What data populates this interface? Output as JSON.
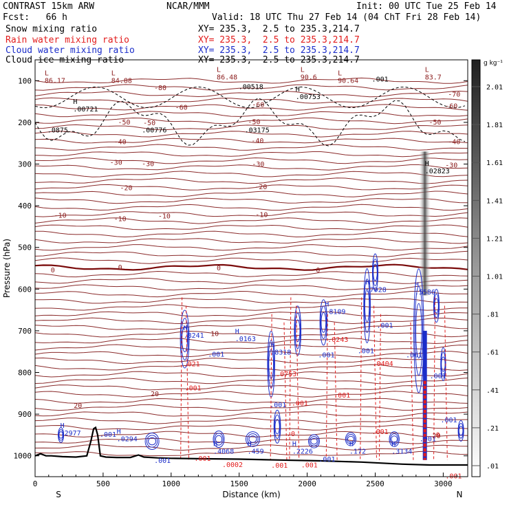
{
  "header": {
    "left_line1": "CONTRAST 15km ARW",
    "left_line2": "Fcst:   66 h",
    "center_top": "NCAR/MMM",
    "init": "Init: 00 UTC Tue 25 Feb 14",
    "valid": "Valid: 18 UTC Thu 27 Feb 14 (04 ChT Fri 28 Feb 14)",
    "fields": [
      {
        "label": "Snow mixing ratio",
        "xy": "XY= 235.3,  2.5 to 235.3,214.7",
        "color": "#000000"
      },
      {
        "label": "Rain water mixing ratio",
        "xy": "XY= 235.3,  2.5 to 235.3,214.7",
        "color": "#e21c1c"
      },
      {
        "label": "Cloud water mixing ratio",
        "xy": "XY= 235.3,  2.5 to 235.3,214.7",
        "color": "#1b2dc9"
      },
      {
        "label": "Cloud ice mixing ratio",
        "xy": "XY= 235.3,  2.5 to 235.3,214.7",
        "color": "#000000"
      }
    ]
  },
  "chart_data": {
    "type": "contour cross-section",
    "xlabel": "Distance (km)",
    "ylabel": "Pressure (hPa)",
    "x_ticks": [
      0,
      500,
      1000,
      1500,
      2000,
      2500,
      3000
    ],
    "x_tick_labels": [
      "0",
      "500",
      "1000",
      "1500",
      "2000",
      "2500",
      "3000"
    ],
    "y_ticks": [
      100,
      200,
      300,
      400,
      500,
      600,
      700,
      800,
      900,
      1000
    ],
    "y_tick_labels": [
      "100",
      "200",
      "300",
      "400",
      "500",
      "600",
      "700",
      "800",
      "900",
      "1000"
    ],
    "xlim": [
      0,
      3180
    ],
    "ylim": [
      50,
      1050
    ],
    "end_labels": {
      "left": "S",
      "right": "N"
    },
    "colorbar": {
      "unit": "g kg⁻¹",
      "labels": [
        "2.01",
        "1.81",
        "1.61",
        "1.41",
        "1.21",
        "1.01",
        ".81",
        ".61",
        ".41",
        ".21",
        ".01"
      ],
      "values": [
        2.01,
        1.81,
        1.61,
        1.41,
        1.21,
        1.01,
        0.81,
        0.61,
        0.41,
        0.21,
        0.01
      ]
    },
    "temperature_isotherms": [
      {
        "label": "-80",
        "x": 920,
        "p": 118
      },
      {
        "label": "-70",
        "x": 3080,
        "p": 133
      },
      {
        "label": "-60",
        "x": 1640,
        "p": 158
      },
      {
        "label": "-60",
        "x": 3060,
        "p": 161
      },
      {
        "label": "-60",
        "x": 1075,
        "p": 165
      },
      {
        "label": "-50",
        "x": 2940,
        "p": 200
      },
      {
        "label": "-50",
        "x": 655,
        "p": 200
      },
      {
        "label": "-50",
        "x": 840,
        "p": 202
      },
      {
        "label": "-50",
        "x": 1610,
        "p": 199
      },
      {
        "label": "-40",
        "x": 625,
        "p": 247
      },
      {
        "label": "-40",
        "x": 1635,
        "p": 245
      },
      {
        "label": "-40",
        "x": 3080,
        "p": 247
      },
      {
        "label": "-30",
        "x": 595,
        "p": 297
      },
      {
        "label": "-30",
        "x": 830,
        "p": 300
      },
      {
        "label": "-30",
        "x": 1640,
        "p": 301
      },
      {
        "label": "-30",
        "x": 3060,
        "p": 303
      },
      {
        "label": "-20",
        "x": 670,
        "p": 358
      },
      {
        "label": "-20",
        "x": 1660,
        "p": 355
      },
      {
        "label": "-10",
        "x": 185,
        "p": 424
      },
      {
        "label": "-10",
        "x": 625,
        "p": 432
      },
      {
        "label": "-10",
        "x": 950,
        "p": 425
      },
      {
        "label": "-10",
        "x": 1665,
        "p": 422
      },
      {
        "label": "0",
        "x": 130,
        "p": 555
      },
      {
        "label": "0",
        "x": 625,
        "p": 548
      },
      {
        "label": "0",
        "x": 1350,
        "p": 550
      },
      {
        "label": "0",
        "x": 2080,
        "p": 555
      },
      {
        "label": "10",
        "x": 1320,
        "p": 708
      },
      {
        "label": "20",
        "x": 315,
        "p": 880
      },
      {
        "label": "20",
        "x": 880,
        "p": 852
      },
      {
        "label": "20",
        "x": 2950,
        "p": 953
      }
    ],
    "extrema_labels": [
      {
        "letter": "L",
        "value": "86.17",
        "x": 70,
        "p": 100,
        "color": "#8a1a1a"
      },
      {
        "letter": "L",
        "value": "84.88",
        "x": 560,
        "p": 100,
        "color": "#8a1a1a"
      },
      {
        "letter": "L",
        "value": "86.48",
        "x": 1335,
        "p": 92,
        "color": "#8a1a1a"
      },
      {
        "letter": "L",
        "value": "90.6",
        "x": 1950,
        "p": 92,
        "color": "#8a1a1a"
      },
      {
        "letter": "L",
        "value": "90.64",
        "x": 2225,
        "p": 100,
        "color": "#8a1a1a"
      },
      {
        "letter": "L",
        "value": "83.7",
        "x": 2865,
        "p": 92,
        "color": "#8a1a1a"
      },
      {
        "letter": "H",
        "value": ".00721",
        "x": 280,
        "p": 169,
        "color": "#000000"
      },
      {
        "letter": "",
        "value": ".00518",
        "x": 1495,
        "p": 115,
        "color": "#000000"
      },
      {
        "letter": "H",
        "value": ".00753",
        "x": 1915,
        "p": 139,
        "color": "#000000"
      },
      {
        "letter": "",
        "value": ".001",
        "x": 2475,
        "p": 97,
        "color": "#000000"
      },
      {
        "letter": "",
        "value": ".0875",
        "x": 90,
        "p": 219,
        "color": "#000000"
      },
      {
        "letter": "",
        "value": ".00776",
        "x": 785,
        "p": 219,
        "color": "#000000"
      },
      {
        "letter": "",
        "value": ".03175",
        "x": 1540,
        "p": 219,
        "color": "#000000"
      },
      {
        "letter": "H",
        "value": ".02823",
        "x": 2865,
        "p": 317,
        "color": "#000000"
      },
      {
        "letter": "H",
        "value": ".7928",
        "x": 2430,
        "p": 602,
        "color": "#1b2dc9"
      },
      {
        "letter": "H",
        "value": ".5586",
        "x": 2790,
        "p": 608,
        "color": "#1b2dc9"
      },
      {
        "letter": "H",
        "value": ".8109",
        "x": 2130,
        "p": 655,
        "color": "#1b2dc9"
      },
      {
        "letter": "H",
        "value": ".8241",
        "x": 1090,
        "p": 712,
        "color": "#1b2dc9"
      },
      {
        "letter": "H",
        "value": ".0163",
        "x": 1470,
        "p": 720,
        "color": "#1b2dc9"
      },
      {
        "letter": "H",
        "value": ".8318",
        "x": 1730,
        "p": 752,
        "color": "#1b2dc9"
      },
      {
        "letter": "H",
        "value": ".2977",
        "x": 185,
        "p": 946,
        "color": "#1b2dc9"
      },
      {
        "letter": "H",
        "value": ".0294",
        "x": 600,
        "p": 960,
        "color": "#1b2dc9"
      },
      {
        "letter": "H",
        "value": ".4068",
        "x": 1310,
        "p": 990,
        "color": "#1b2dc9"
      },
      {
        "letter": "H",
        "value": ".459",
        "x": 1560,
        "p": 990,
        "color": "#1b2dc9"
      },
      {
        "letter": "H",
        "value": ".2226",
        "x": 1890,
        "p": 990,
        "color": "#1b2dc9"
      },
      {
        "letter": "H",
        "value": ".172",
        "x": 2310,
        "p": 990,
        "color": "#1b2dc9"
      },
      {
        "letter": "H",
        "value": ".3134",
        "x": 2620,
        "p": 990,
        "color": "#1b2dc9"
      }
    ],
    "contour_value_labels": [
      {
        "value": ".0243",
        "x": 2150,
        "p": 722,
        "color": "#e21c1c"
      },
      {
        "value": ".0404",
        "x": 2480,
        "p": 779,
        "color": "#e21c1c"
      },
      {
        "value": ".0753",
        "x": 1770,
        "p": 804,
        "color": "#e21c1c"
      },
      {
        "value": ".021",
        "x": 1090,
        "p": 780,
        "color": "#e21c1c"
      },
      {
        "value": ".001",
        "x": 1270,
        "p": 757,
        "color": "#1b2dc9"
      },
      {
        "value": ".001",
        "x": 2080,
        "p": 759,
        "color": "#1b2dc9"
      },
      {
        "value": ".001",
        "x": 2370,
        "p": 749,
        "color": "#1b2dc9"
      },
      {
        "value": ".001",
        "x": 2725,
        "p": 759,
        "color": "#1b2dc9"
      },
      {
        "value": ".001",
        "x": 2510,
        "p": 688,
        "color": "#1b2dc9"
      },
      {
        "value": ".001",
        "x": 2900,
        "p": 809,
        "color": "#1b2dc9"
      },
      {
        "value": ".001",
        "x": 1725,
        "p": 878,
        "color": "#1b2dc9"
      },
      {
        "value": ".001",
        "x": 2980,
        "p": 915,
        "color": "#1b2dc9"
      },
      {
        "value": ".001",
        "x": 2825,
        "p": 960,
        "color": "#1b2dc9"
      },
      {
        "value": ".001",
        "x": 875,
        "p": 1012,
        "color": "#1b2dc9"
      },
      {
        "value": ".001",
        "x": 2085,
        "p": 1009,
        "color": "#1b2dc9"
      },
      {
        "value": ".001",
        "x": 475,
        "p": 949,
        "color": "#1b2dc9"
      },
      {
        "value": ".001",
        "x": 1885,
        "p": 874,
        "color": "#e21c1c"
      },
      {
        "value": ".001",
        "x": 2195,
        "p": 855,
        "color": "#e21c1c"
      },
      {
        "value": ".001",
        "x": 2475,
        "p": 943,
        "color": "#e21c1c"
      },
      {
        "value": ".001",
        "x": 1100,
        "p": 838,
        "color": "#e21c1c"
      },
      {
        "value": ".001",
        "x": 1735,
        "p": 1024,
        "color": "#e21c1c"
      },
      {
        "value": ".001",
        "x": 1955,
        "p": 1023,
        "color": "#e21c1c"
      },
      {
        "value": ".001",
        "x": 1170,
        "p": 1007,
        "color": "#e21c1c"
      },
      {
        "value": ".001",
        "x": 3015,
        "p": 1049,
        "color": "#e21c1c"
      },
      {
        "value": ".0002",
        "x": 1375,
        "p": 1022,
        "color": "#e21c1c"
      },
      {
        "value": ".0",
        "x": 1850,
        "p": 948,
        "color": "#e21c1c"
      },
      {
        "value": ".0",
        "x": 2915,
        "p": 950,
        "color": "#e21c1c"
      }
    ],
    "snow_plume": {
      "x": 2865,
      "p_top": 270,
      "p_bottom": 615,
      "max_value": 1.4
    },
    "terrain": {
      "x": [
        0,
        40,
        80,
        120,
        200,
        300,
        380,
        410,
        430,
        445,
        460,
        480,
        520,
        600,
        700,
        760,
        800,
        900,
        1000,
        1200,
        1500,
        1800,
        2100,
        2400,
        2700,
        2900,
        3000,
        3180
      ],
      "p": [
        1000,
        995,
        1000,
        1000,
        1002,
        1003,
        1000,
        965,
        935,
        932,
        950,
        1000,
        1003,
        1004,
        1004,
        998,
        1003,
        1005,
        1006,
        1007,
        1008,
        1010,
        1012,
        1015,
        1020,
        1022,
        1022,
        1022
      ]
    }
  }
}
